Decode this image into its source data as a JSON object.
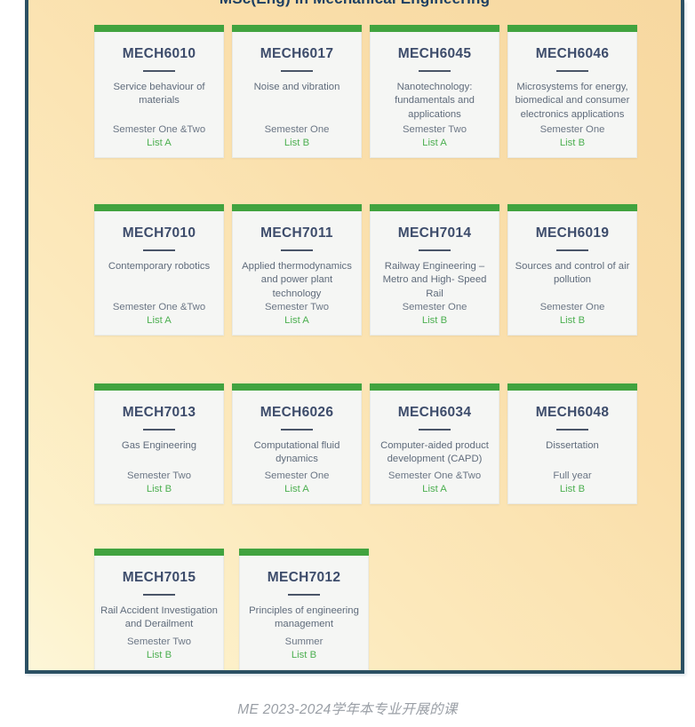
{
  "page": {
    "title": "MSc(Eng) in Mechanical Engineering",
    "caption": "ME 2023-2024学年本专业开展的课"
  },
  "colors": {
    "panel_border": "#2b5063",
    "accent_green": "#41a33f",
    "list_green": "#4caf50",
    "code_navy": "#3d4c6b",
    "background_top_right": "#f7d8a0",
    "background_bottom_left": "#fdf6d8"
  },
  "rows": [
    {
      "cards": [
        {
          "code": "MECH6010",
          "title": "Service behaviour of materials",
          "semester": "Semester One &Two",
          "list": "List A"
        },
        {
          "code": "MECH6017",
          "title": "Noise and vibration",
          "semester": "Semester One",
          "list": "List B"
        },
        {
          "code": "MECH6045",
          "title": "Nanotechnology: fundamentals and applications",
          "semester": "Semester Two",
          "list": "List A"
        },
        {
          "code": "MECH6046",
          "title": "Microsystems for energy, biomedical and consumer electronics applications",
          "semester": "Semester One",
          "list": "List B"
        }
      ]
    },
    {
      "cards": [
        {
          "code": "MECH7010",
          "title": "Contemporary robotics",
          "semester": "Semester One &Two",
          "list": "List A"
        },
        {
          "code": "MECH7011",
          "title": "Applied thermodynamics and power plant technology",
          "semester": "Semester Two",
          "list": "List A"
        },
        {
          "code": "MECH7014",
          "title": "Railway Engineering – Metro and High- Speed Rail",
          "semester": "Semester One",
          "list": "List B"
        },
        {
          "code": "MECH6019",
          "title": "Sources and control of air pollution",
          "semester": "Semester One",
          "list": "List B"
        }
      ]
    },
    {
      "cards": [
        {
          "code": "MECH7013",
          "title": "Gas Engineering",
          "semester": "Semester Two",
          "list": "List B"
        },
        {
          "code": "MECH6026",
          "title": "Computational fluid dynamics",
          "semester": "Semester One",
          "list": "List A"
        },
        {
          "code": "MECH6034",
          "title": "Computer-aided product development (CAPD)",
          "semester": "Semester One &Two",
          "list": "List A"
        },
        {
          "code": "MECH6048",
          "title": "Dissertation",
          "semester": "Full year",
          "list": "List B"
        }
      ]
    },
    {
      "cards": [
        {
          "code": "MECH7015",
          "title": "Rail Accident Investigation and Derailment",
          "semester": "Semester Two",
          "list": "List B"
        },
        {
          "code": "MECH7012",
          "title": "Principles of engineering management",
          "semester": "Summer",
          "list": "List B"
        }
      ]
    }
  ]
}
